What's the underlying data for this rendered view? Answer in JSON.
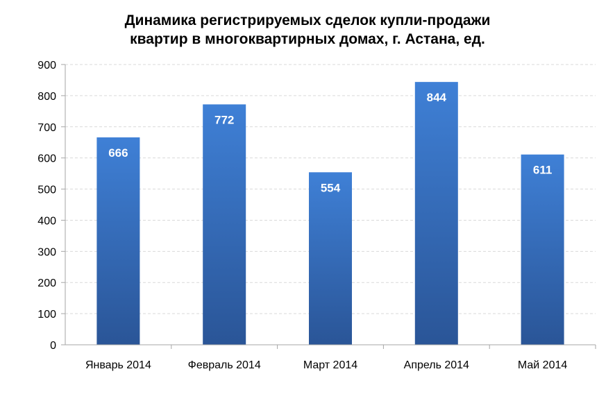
{
  "chart_data": {
    "type": "bar",
    "title_lines": [
      "Динамика регистрируемых сделок купли-продажи",
      "квартир в многоквартирных домах, г. Астана, ед."
    ],
    "categories": [
      "Январь 2014",
      "Февраль 2014",
      "Март 2014",
      "Апрель 2014",
      "Май 2014"
    ],
    "values": [
      666,
      772,
      554,
      844,
      611
    ],
    "data_labels": [
      "666",
      "772",
      "554",
      "844",
      "611"
    ],
    "yticks": [
      0,
      100,
      200,
      300,
      400,
      500,
      600,
      700,
      800,
      900
    ],
    "ylim": [
      0,
      900
    ],
    "grid": true,
    "bar_color_top": "#3f80d6",
    "bar_color_bottom": "#2a5597",
    "label_color": "#ffffff",
    "grid_color": "#d9d9d9",
    "axis_color": "#a6a6a6"
  }
}
